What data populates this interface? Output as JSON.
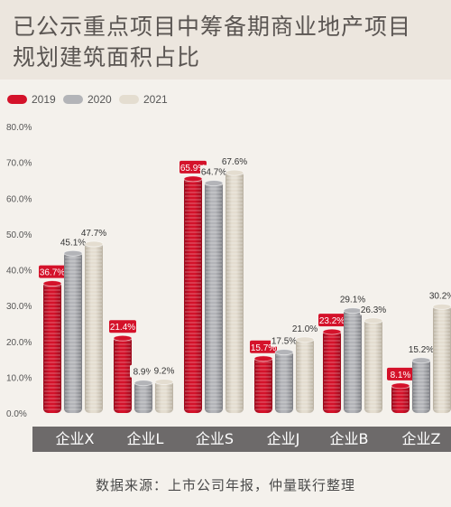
{
  "title_line1": "已公示重点项目中筹备期商业地产项目",
  "title_line2": "规划建筑面积占比",
  "source": "数据来源：上市公司年报，仲量联行整理",
  "colors": {
    "2019": "#d4122a",
    "2020": "#b3b4b8",
    "2021": "#e4ddd0",
    "category_band": "#6d6a6a"
  },
  "chart_data": {
    "type": "bar",
    "title": "已公示重点项目中筹备期商业地产项目规划建筑面积占比",
    "categories": [
      "企业X",
      "企业L",
      "企业S",
      "企业J",
      "企业B",
      "企业Z"
    ],
    "series": [
      {
        "name": "2019",
        "values": [
          36.7,
          21.4,
          65.9,
          15.7,
          23.2,
          8.1
        ]
      },
      {
        "name": "2020",
        "values": [
          45.1,
          8.9,
          64.7,
          17.5,
          29.1,
          15.2
        ]
      },
      {
        "name": "2021",
        "values": [
          47.7,
          9.2,
          67.6,
          21.0,
          26.3,
          30.2
        ]
      }
    ],
    "y_ticks": [
      "0.0%",
      "10.0%",
      "20.0%",
      "30.0%",
      "40.0%",
      "50.0%",
      "60.0%",
      "70.0%",
      "80.0%"
    ],
    "ylim": [
      0,
      80
    ],
    "value_suffix": "%",
    "legend": "top-left",
    "grid": false
  }
}
